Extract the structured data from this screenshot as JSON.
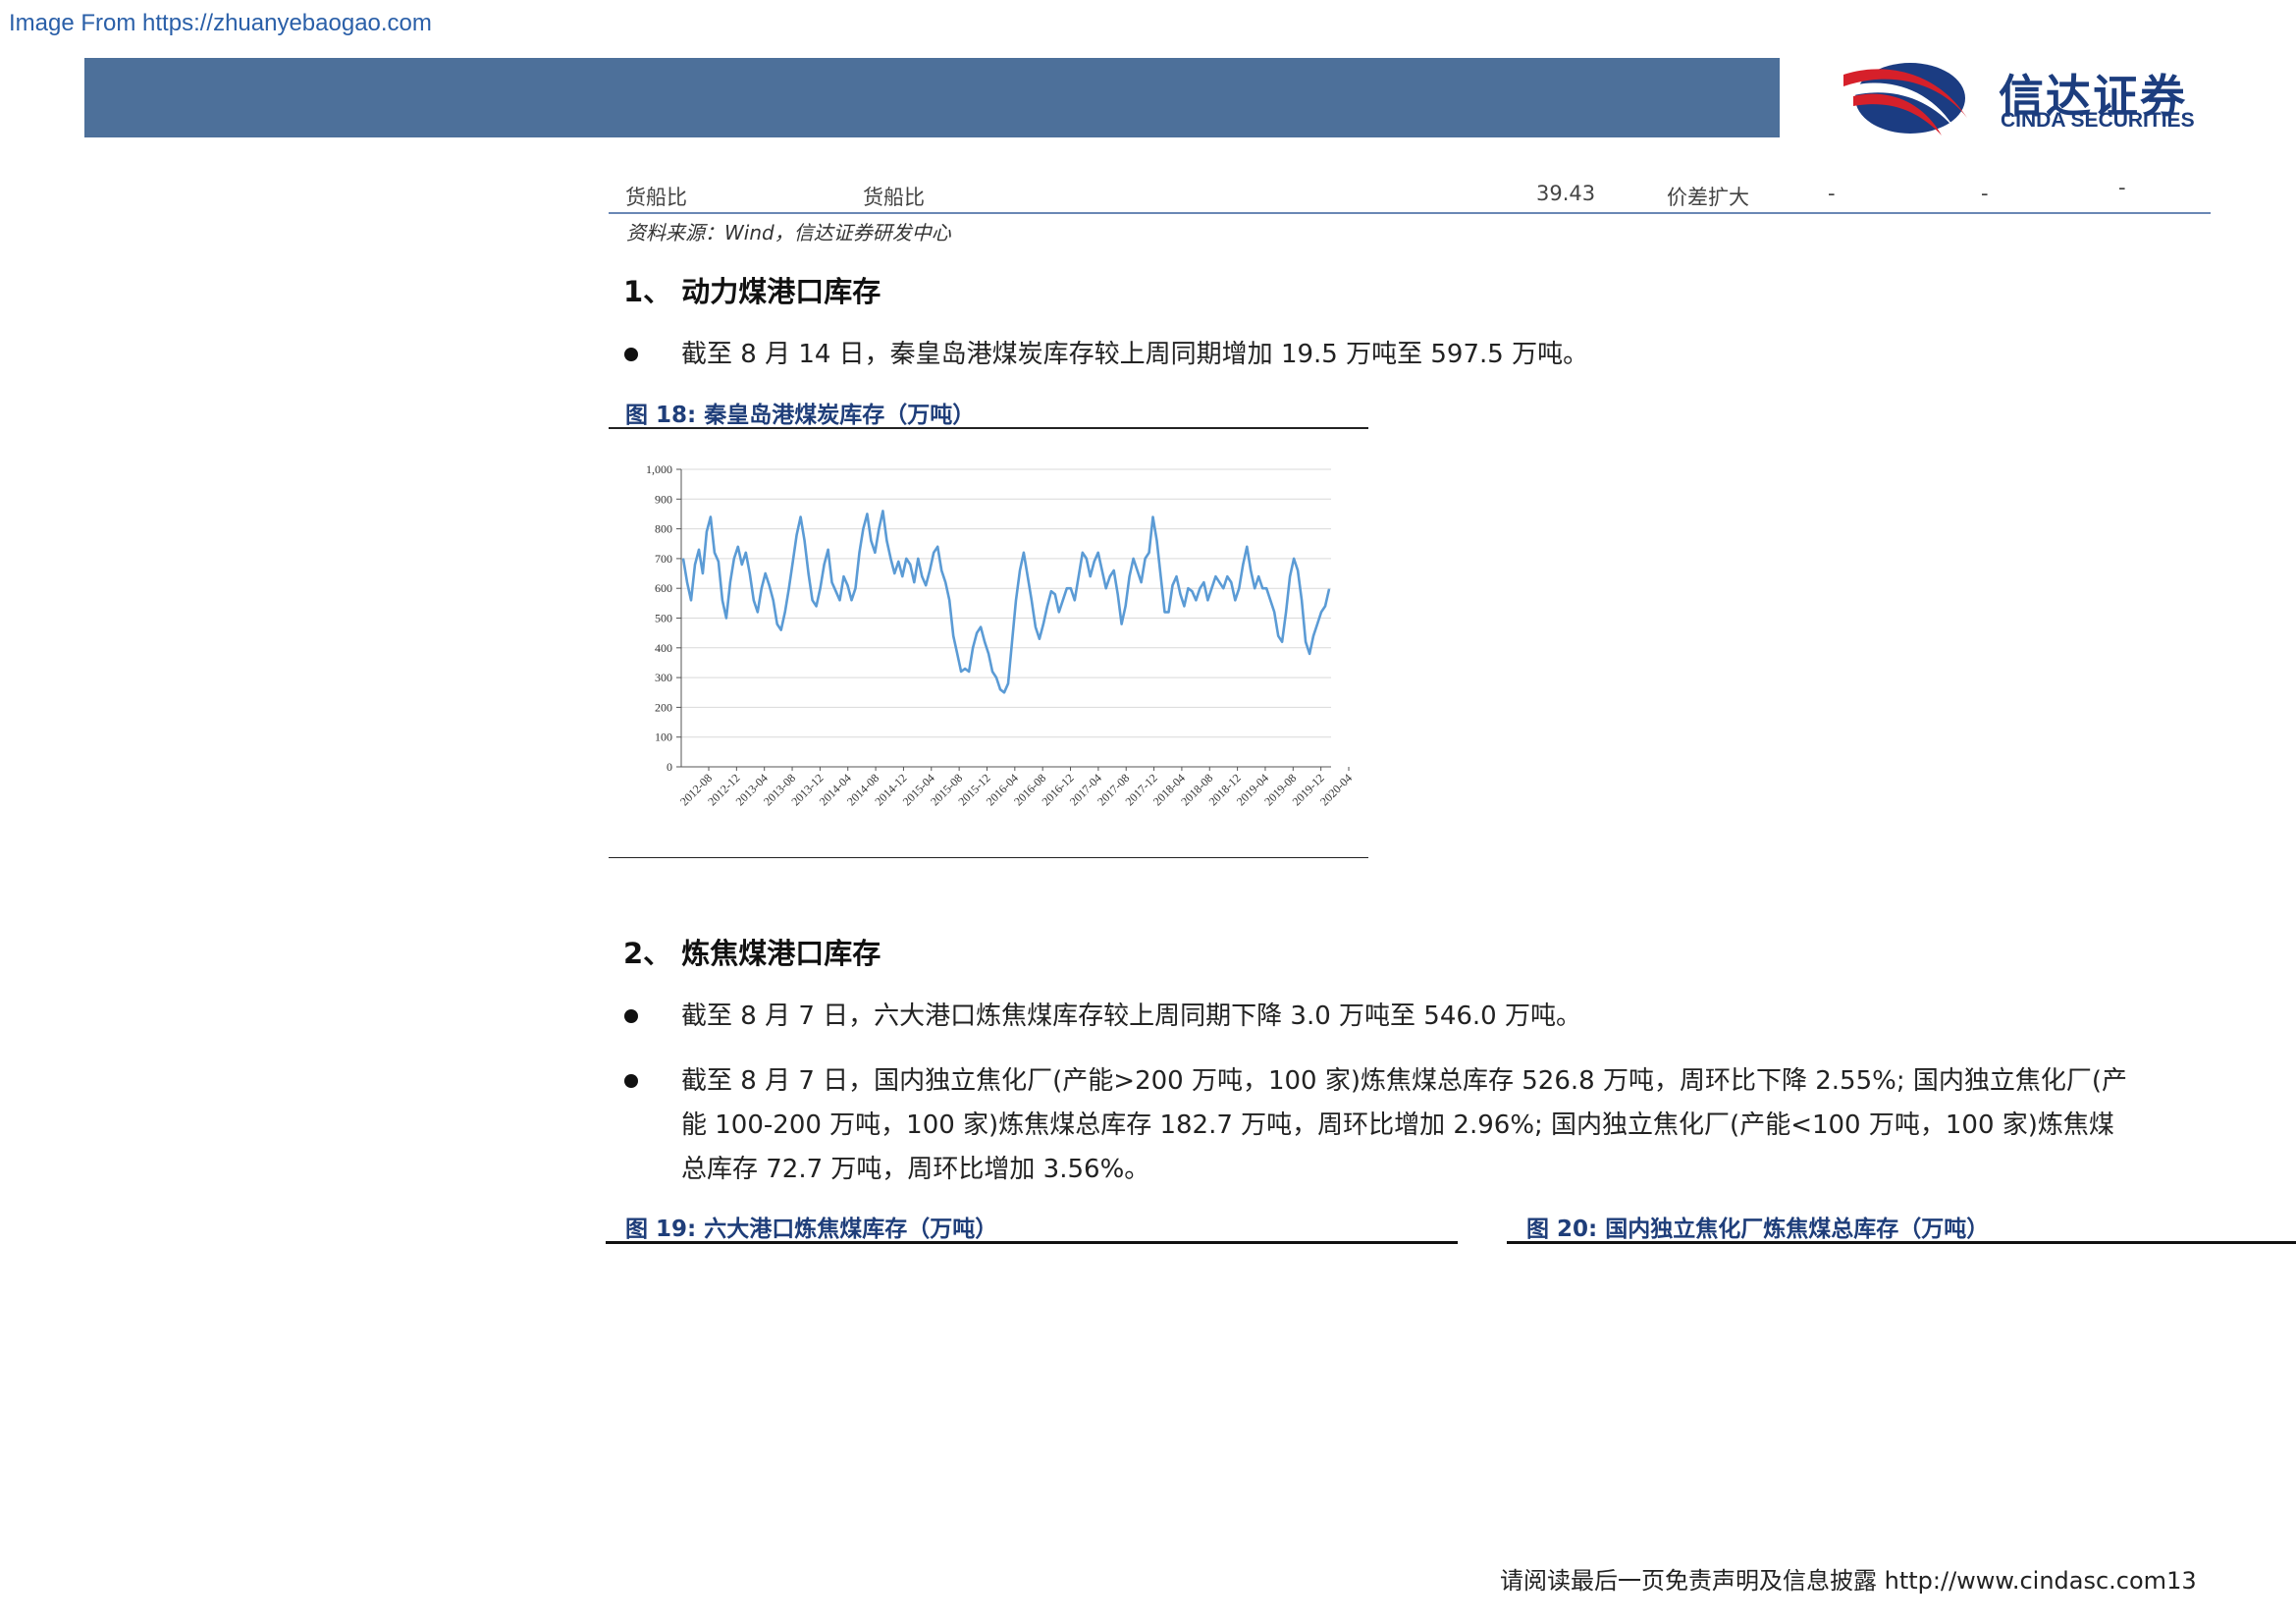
{
  "watermark": "Image From https://zhuanyebaogao.com",
  "logo": {
    "cn": "信达证券",
    "en": "CINDA SECURITIES"
  },
  "table_row": {
    "col1": "货船比",
    "col2": "货船比",
    "value": "39.43",
    "trend": "价差扩大",
    "dash1": "-",
    "dash2": "-",
    "dash3": "-"
  },
  "source": "资料来源：Wind，信达证券研发中心",
  "section1": {
    "heading": "1、 动力煤港口库存",
    "bullet1": "截至 8 月 14 日，秦皇岛港煤炭库存较上周同期增加 19.5 万吨至 597.5 万吨。"
  },
  "fig18": {
    "title": "图 18:  秦皇岛港煤炭库存（万吨）"
  },
  "section2": {
    "heading": "2、 炼焦煤港口库存",
    "bullet1": "截至 8 月 7 日，六大港口炼焦煤库存较上周同期下降 3.0 万吨至 546.0 万吨。",
    "bullet2_line1": "截至 8 月 7 日，国内独立焦化厂(产能>200 万吨，100 家)炼焦煤总库存 526.8 万吨，周环比下降 2.55%; 国内独立焦化厂(产",
    "bullet2_line2": "能 100-200 万吨，100 家)炼焦煤总库存 182.7 万吨，周环比增加 2.96%; 国内独立焦化厂(产能<100 万吨，100 家)炼焦煤",
    "bullet2_line3": "总库存 72.7 万吨，周环比增加 3.56%。"
  },
  "fig19": {
    "title": "图 19:  六大港口炼焦煤库存（万吨）"
  },
  "fig20": {
    "title": "图 20:  国内独立焦化厂炼焦煤总库存（万吨）"
  },
  "footer": "请阅读最后一页免责声明及信息披露  http://www.cindasc.com13",
  "chart_data": {
    "type": "line",
    "title": "秦皇岛港煤炭库存（万吨）",
    "xlabel": "",
    "ylabel": "",
    "ylim": [
      0,
      1000
    ],
    "y_ticks": [
      "0",
      "100",
      "200",
      "300",
      "400",
      "500",
      "600",
      "700",
      "800",
      "900",
      "1,000"
    ],
    "x_ticks": [
      "2012-08",
      "2012-12",
      "2013-04",
      "2013-08",
      "2013-12",
      "2014-04",
      "2014-08",
      "2014-12",
      "2015-04",
      "2015-08",
      "2015-12",
      "2016-04",
      "2016-08",
      "2016-12",
      "2017-04",
      "2017-08",
      "2017-12",
      "2018-04",
      "2018-08",
      "2018-12",
      "2019-04",
      "2019-08",
      "2019-12",
      "2020-04"
    ],
    "series": [
      {
        "name": "秦皇岛港煤炭库存",
        "color": "#5b9bd5",
        "x_start": "2012-08",
        "step": "2 weeks",
        "values": [
          700,
          620,
          560,
          680,
          730,
          650,
          790,
          840,
          720,
          690,
          560,
          500,
          620,
          700,
          740,
          680,
          720,
          650,
          560,
          520,
          600,
          650,
          610,
          560,
          480,
          460,
          520,
          600,
          690,
          780,
          840,
          760,
          650,
          560,
          540,
          600,
          680,
          730,
          620,
          590,
          560,
          640,
          610,
          560,
          600,
          720,
          800,
          850,
          760,
          720,
          800,
          860,
          760,
          700,
          650,
          690,
          640,
          700,
          680,
          620,
          700,
          640,
          610,
          660,
          720,
          740,
          660,
          620,
          560,
          440,
          380,
          320,
          330,
          320,
          400,
          450,
          470,
          420,
          380,
          320,
          300,
          260,
          250,
          280,
          420,
          560,
          660,
          720,
          640,
          560,
          470,
          430,
          480,
          540,
          590,
          580,
          520,
          560,
          600,
          600,
          560,
          640,
          720,
          700,
          640,
          690,
          720,
          660,
          600,
          640,
          660,
          580,
          480,
          540,
          640,
          700,
          660,
          620,
          700,
          720,
          840,
          760,
          640,
          520,
          520,
          610,
          640,
          580,
          540,
          600,
          590,
          560,
          600,
          620,
          560,
          600,
          640,
          620,
          600,
          640,
          620,
          560,
          600,
          680,
          740,
          660,
          600,
          640,
          600,
          600,
          560,
          520,
          440,
          420,
          520,
          640,
          700,
          660,
          560,
          420,
          380,
          440,
          480,
          520,
          540,
          597.5
        ]
      }
    ]
  }
}
